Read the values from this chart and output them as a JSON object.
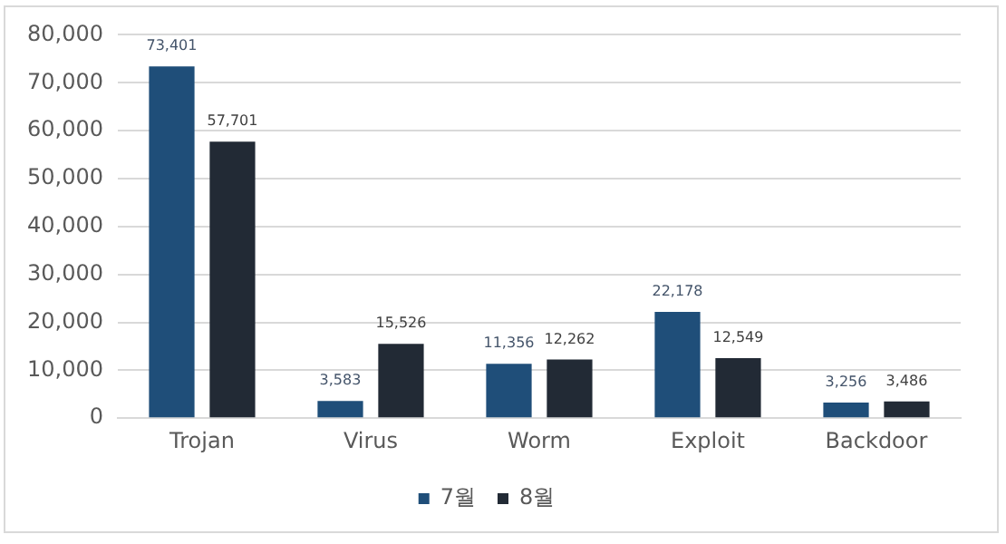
{
  "chart_data": {
    "type": "bar",
    "categories": [
      "Trojan",
      "Virus",
      "Worm",
      "Exploit",
      "Backdoor"
    ],
    "series": [
      {
        "name": "7월",
        "color": "#1f4e79",
        "values": [
          73401,
          3583,
          11356,
          22178,
          3256
        ],
        "value_labels": [
          "73,401",
          "3,583",
          "11,356",
          "22,178",
          "3,256"
        ]
      },
      {
        "name": "8월",
        "color": "#222a35",
        "values": [
          57701,
          15526,
          12262,
          12549,
          3486
        ],
        "value_labels": [
          "57,701",
          "15,526",
          "12,262",
          "12,549",
          "3,486"
        ]
      }
    ],
    "ylim": [
      0,
      80000
    ],
    "yticks": [
      {
        "value": 0,
        "label": "0"
      },
      {
        "value": 10000,
        "label": "10,000"
      },
      {
        "value": 20000,
        "label": "20,000"
      },
      {
        "value": 30000,
        "label": "30,000"
      },
      {
        "value": 40000,
        "label": "40,000"
      },
      {
        "value": 50000,
        "label": "50,000"
      },
      {
        "value": 60000,
        "label": "60,000"
      },
      {
        "value": 70000,
        "label": "70,000"
      },
      {
        "value": 80000,
        "label": "80,000"
      }
    ],
    "grid": "y",
    "legend": "bottom"
  }
}
